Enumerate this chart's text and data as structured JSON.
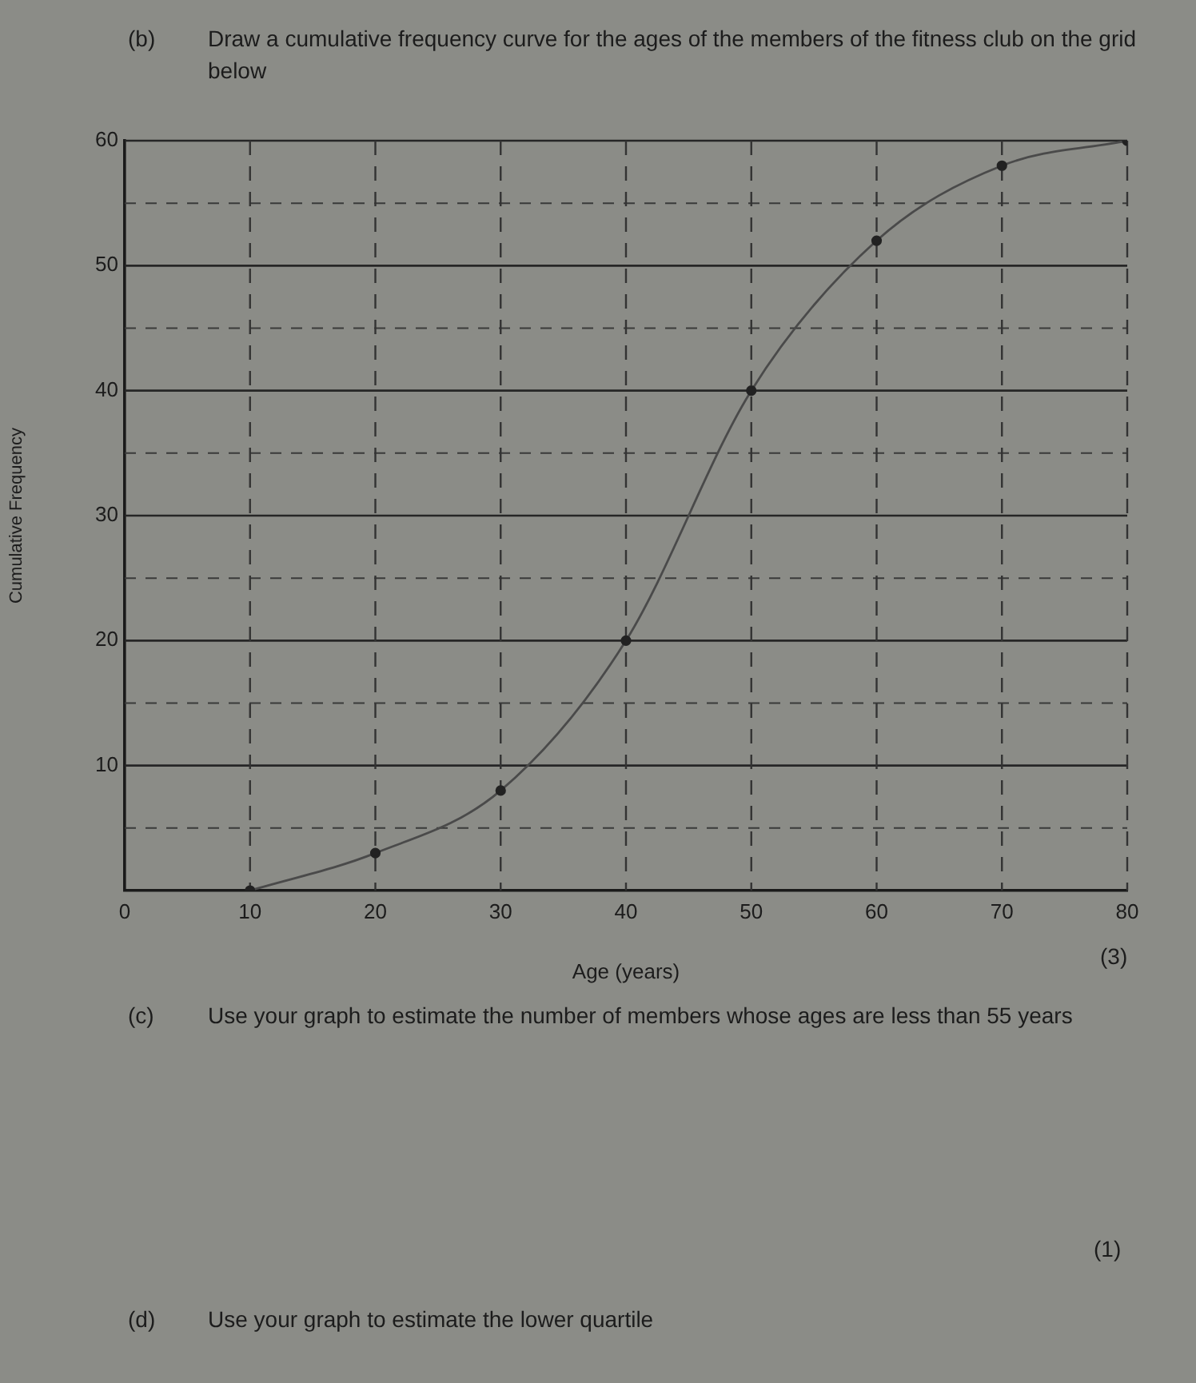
{
  "chart_data": {
    "type": "line",
    "title": "(b) Draw a cumulative frequency curve for the ages of the members of the fitness club on the grid below",
    "xlabel": "Age (years)",
    "ylabel": "Cumulative Frequency",
    "x": [
      10,
      20,
      30,
      40,
      50,
      60,
      70,
      80
    ],
    "series": [
      {
        "color": "#4a4a4a",
        "values": [
          0,
          3,
          8,
          20,
          40,
          52,
          58,
          60
        ]
      }
    ],
    "xlim": [
      0,
      80
    ],
    "ylim": [
      0,
      60
    ],
    "xticks": [
      0,
      10,
      20,
      30,
      40,
      50,
      60,
      70,
      80
    ],
    "yticks": [
      {
        "value": 0,
        "label": null
      },
      {
        "value": 5,
        "label": null
      },
      10,
      {
        "value": 15,
        "label": null
      },
      20,
      {
        "value": 25,
        "label": null
      },
      30,
      {
        "value": 35,
        "label": null
      },
      40,
      {
        "value": 45,
        "label": null
      },
      50,
      {
        "value": 55,
        "label": null
      },
      60
    ],
    "grid": true,
    "legend": false,
    "marker": "circle",
    "line_style": "solid",
    "annotations": [
      "(3)",
      "(c) Use your graph to estimate the number of members whose ages are less than 55 years",
      "(1)",
      "(d) Use your graph to estimate the lower quartile"
    ]
  }
}
